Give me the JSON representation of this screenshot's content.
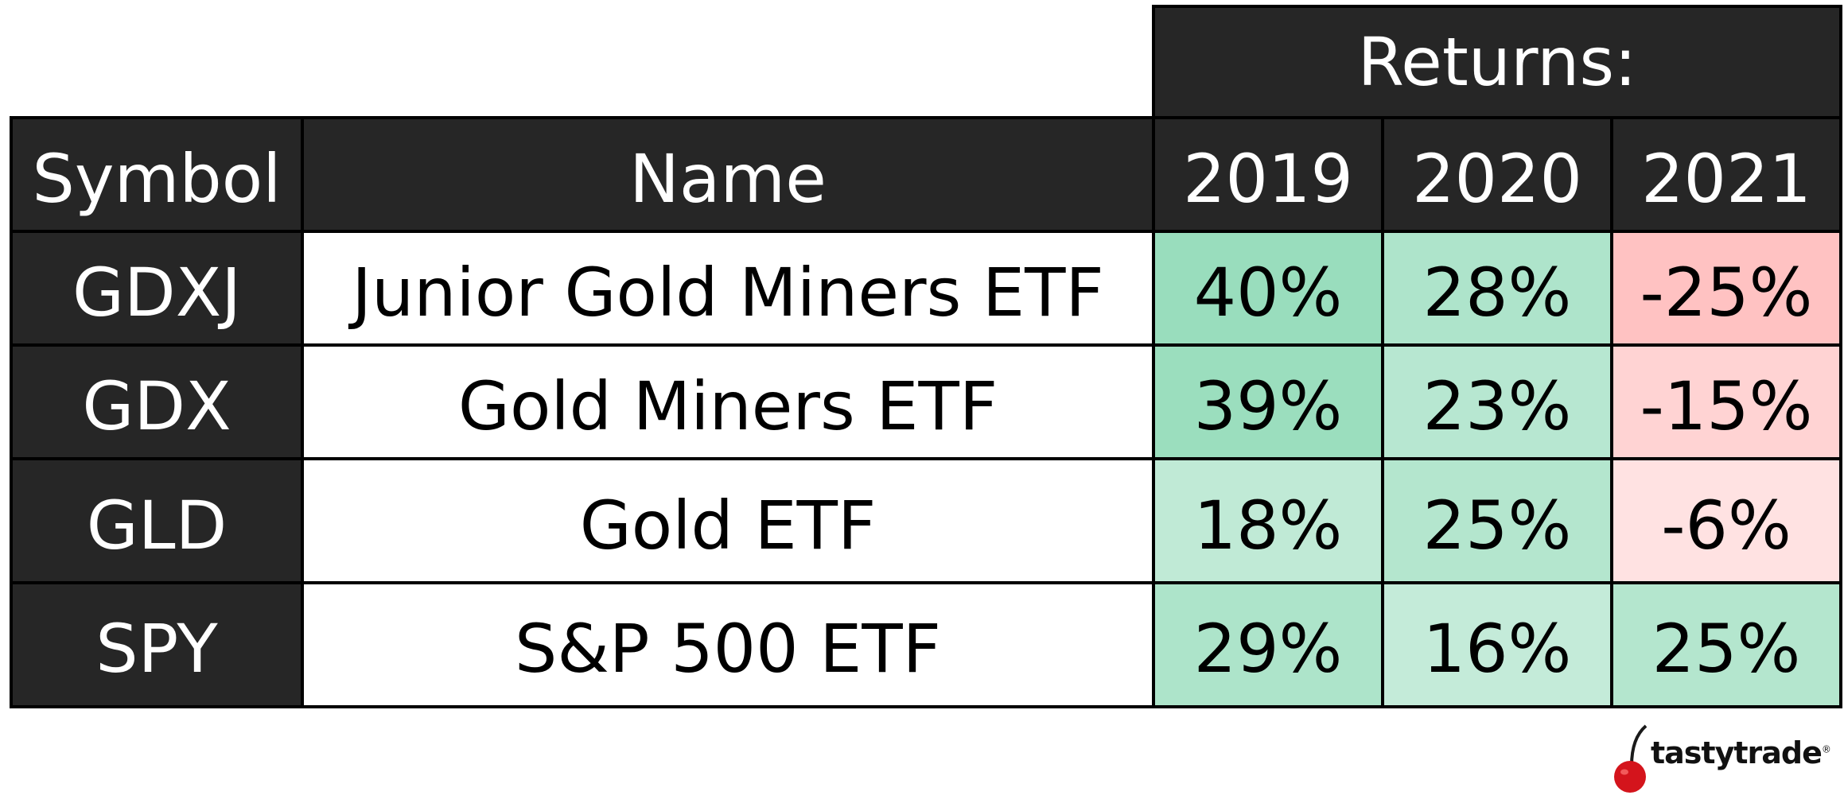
{
  "chart_data": {
    "type": "table",
    "group_header": "Returns:",
    "columns": [
      "Symbol",
      "Name",
      "2019",
      "2020",
      "2021"
    ],
    "rows": [
      {
        "symbol": "GDXJ",
        "name": "Junior Gold Miners ETF",
        "values": [
          40,
          28,
          -25
        ],
        "labels": [
          "40%",
          "28%",
          "-25%"
        ]
      },
      {
        "symbol": "GDX",
        "name": "Gold Miners ETF",
        "values": [
          39,
          23,
          -15
        ],
        "labels": [
          "39%",
          "23%",
          "-15%"
        ]
      },
      {
        "symbol": "GLD",
        "name": "Gold ETF",
        "values": [
          18,
          25,
          -6
        ],
        "labels": [
          "18%",
          "25%",
          "-6%"
        ]
      },
      {
        "symbol": "SPY",
        "name": "S&P 500 ETF",
        "values": [
          29,
          16,
          25
        ],
        "labels": [
          "29%",
          "16%",
          "25%"
        ]
      }
    ],
    "colors": {
      "header_bg": "#262626",
      "header_text": "#ffffff",
      "positive_max": "#99ddbd",
      "negative_max": "#ffc2c2",
      "neutral": "#ffffff"
    }
  },
  "branding": {
    "logo_text": "tastytrade",
    "logo_mark": "®",
    "logo_icon": "cherry-icon"
  }
}
